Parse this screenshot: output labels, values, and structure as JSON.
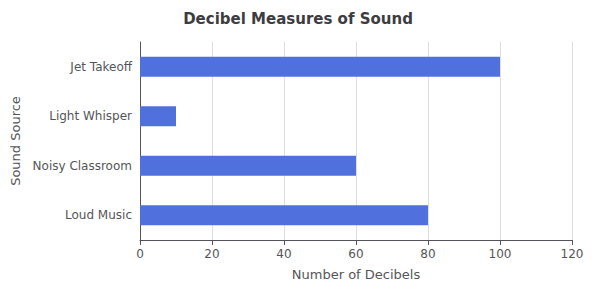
{
  "chart_data": {
    "type": "bar",
    "orientation": "horizontal",
    "title": "Decibel Measures of Sound",
    "categories": [
      "Jet Takeoff",
      "Light Whisper",
      "Noisy Classroom",
      "Loud Music"
    ],
    "values": [
      100,
      10,
      60,
      80
    ],
    "xlabel": "Number of Decibels",
    "ylabel": "Sound Source",
    "xlim": [
      0,
      120
    ],
    "xticks": [
      0,
      20,
      40,
      60,
      80,
      100,
      120
    ],
    "grid": true
  }
}
